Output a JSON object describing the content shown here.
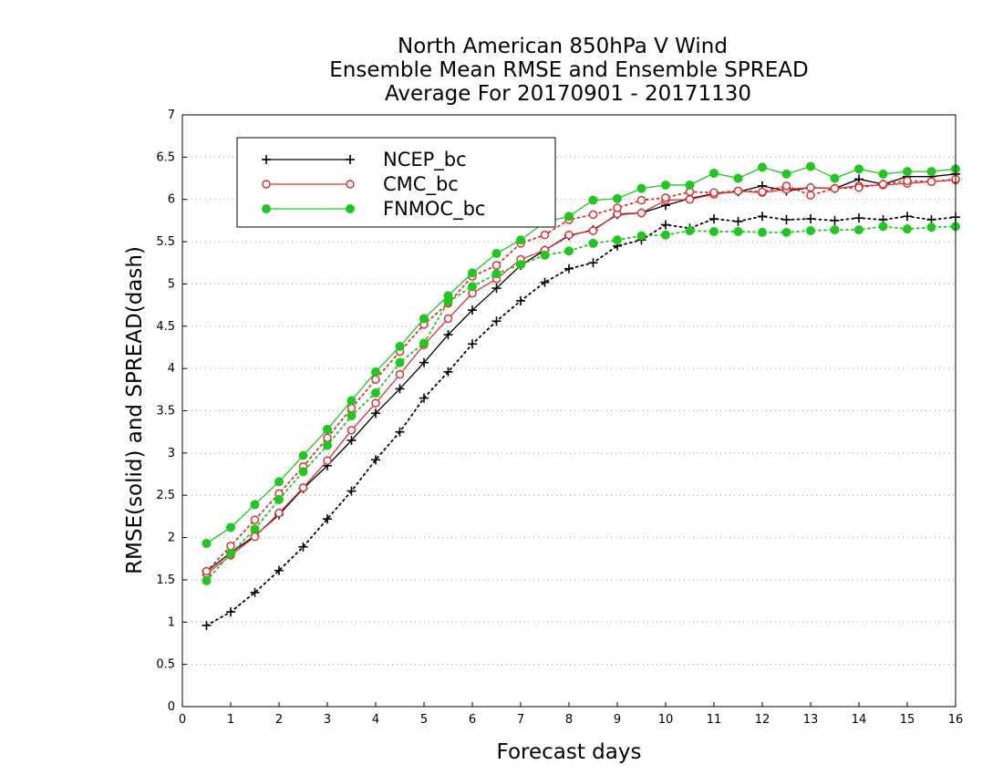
{
  "chart_data": {
    "type": "line",
    "title": [
      "North American 850hPa V Wind",
      "Ensemble Mean RMSE and Ensemble SPREAD",
      "Average For 20170901 - 20171130"
    ],
    "xlabel": "Forecast days",
    "ylabel": "RMSE(solid) and SPREAD(dash)",
    "xlim": [
      0,
      16
    ],
    "ylim": [
      0,
      7
    ],
    "xticks": [
      0,
      1,
      2,
      3,
      4,
      5,
      6,
      7,
      8,
      9,
      10,
      11,
      12,
      13,
      14,
      15,
      16
    ],
    "yticks": [
      0,
      0.5,
      1,
      1.5,
      2,
      2.5,
      3,
      3.5,
      4,
      4.5,
      5,
      5.5,
      6,
      6.5,
      7
    ],
    "grid": "horizontal dotted",
    "legend_position": "top-left",
    "x": [
      0.5,
      1,
      1.5,
      2,
      2.5,
      3,
      3.5,
      4,
      4.5,
      5,
      5.5,
      6,
      6.5,
      7,
      7.5,
      8,
      8.5,
      9,
      9.5,
      10,
      10.5,
      11,
      11.5,
      12,
      12.5,
      13,
      13.5,
      14,
      14.5,
      15,
      15.5,
      16
    ],
    "series": [
      {
        "name": "NCEP_bc",
        "metric": "RMSE",
        "style": "solid",
        "marker": "plus",
        "color": "#000000",
        "values": [
          1.6,
          1.82,
          2.02,
          2.27,
          2.58,
          2.85,
          3.15,
          3.47,
          3.76,
          4.07,
          4.4,
          4.69,
          4.95,
          5.22,
          5.4,
          5.57,
          5.64,
          5.82,
          5.84,
          5.93,
          6.01,
          6.07,
          6.09,
          6.16,
          6.1,
          6.14,
          6.13,
          6.24,
          6.18,
          6.27,
          6.27,
          6.3
        ]
      },
      {
        "name": "NCEP_bc",
        "metric": "SPREAD",
        "style": "dotted",
        "marker": "plus",
        "color": "#000000",
        "values": [
          0.96,
          1.12,
          1.35,
          1.61,
          1.89,
          2.22,
          2.55,
          2.92,
          3.25,
          3.65,
          3.96,
          4.29,
          4.56,
          4.8,
          5.02,
          5.18,
          5.25,
          5.45,
          5.52,
          5.7,
          5.66,
          5.77,
          5.74,
          5.8,
          5.76,
          5.77,
          5.75,
          5.78,
          5.76,
          5.8,
          5.76,
          5.79
        ]
      },
      {
        "name": "CMC_bc",
        "metric": "RMSE",
        "style": "solid",
        "marker": "open-circle",
        "color": "#e03030",
        "values": [
          1.57,
          1.79,
          2.01,
          2.29,
          2.59,
          2.91,
          3.27,
          3.59,
          3.93,
          4.28,
          4.59,
          4.89,
          5.06,
          5.29,
          5.4,
          5.58,
          5.63,
          5.83,
          5.84,
          5.99,
          6.0,
          6.06,
          6.1,
          6.08,
          6.12,
          6.14,
          6.13,
          6.16,
          6.17,
          6.19,
          6.21,
          6.23
        ]
      },
      {
        "name": "CMC_bc",
        "metric": "SPREAD",
        "style": "dotted",
        "marker": "open-circle",
        "color": "#e03030",
        "values": [
          1.6,
          1.9,
          2.21,
          2.52,
          2.84,
          3.18,
          3.53,
          3.87,
          4.2,
          4.52,
          4.77,
          5.09,
          5.22,
          5.48,
          5.58,
          5.76,
          5.82,
          5.9,
          5.99,
          6.02,
          6.09,
          6.08,
          6.1,
          6.09,
          6.16,
          6.05,
          6.13,
          6.14,
          6.18,
          6.22,
          6.21,
          6.24
        ]
      },
      {
        "name": "FNMOC_bc",
        "metric": "RMSE",
        "style": "solid",
        "marker": "filled-circle",
        "color": "#1ec81e",
        "values": [
          1.93,
          2.12,
          2.39,
          2.66,
          2.97,
          3.28,
          3.62,
          3.96,
          4.26,
          4.59,
          4.86,
          5.13,
          5.36,
          5.52,
          5.73,
          5.8,
          5.99,
          6.01,
          6.13,
          6.17,
          6.17,
          6.31,
          6.25,
          6.38,
          6.3,
          6.39,
          6.25,
          6.36,
          6.3,
          6.33,
          6.33,
          6.36
        ]
      },
      {
        "name": "FNMOC_bc",
        "metric": "SPREAD",
        "style": "dotted",
        "marker": "filled-circle",
        "color": "#1ec81e",
        "values": [
          1.49,
          1.81,
          2.1,
          2.45,
          2.78,
          3.09,
          3.44,
          3.71,
          4.07,
          4.3,
          4.79,
          4.97,
          5.12,
          5.23,
          5.34,
          5.39,
          5.48,
          5.52,
          5.57,
          5.58,
          5.63,
          5.62,
          5.62,
          5.61,
          5.61,
          5.63,
          5.64,
          5.64,
          5.68,
          5.65,
          5.67,
          5.68
        ]
      }
    ],
    "legend": [
      "NCEP_bc",
      "CMC_bc",
      "FNMOC_bc"
    ]
  }
}
